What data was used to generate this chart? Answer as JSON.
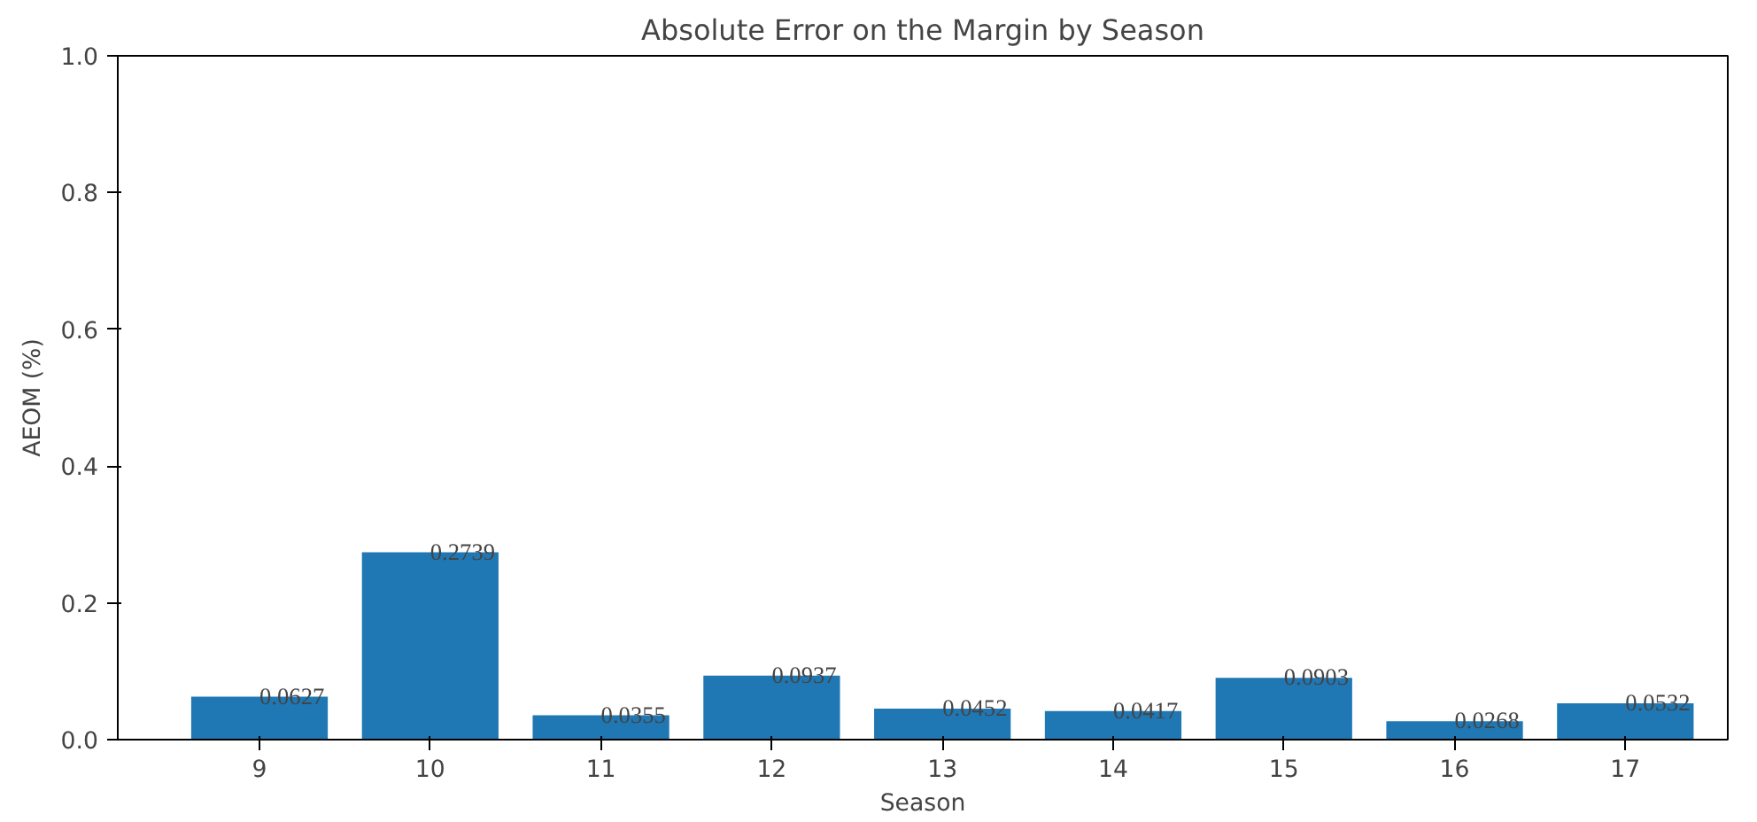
{
  "chart_data": {
    "type": "bar",
    "title": "Absolute Error on the Margin by Season",
    "xlabel": "Season",
    "ylabel": "AEOM (%)",
    "categories": [
      "9",
      "10",
      "11",
      "12",
      "13",
      "14",
      "15",
      "16",
      "17"
    ],
    "values": [
      0.0627,
      0.2739,
      0.0355,
      0.0937,
      0.0452,
      0.0417,
      0.0903,
      0.0268,
      0.0532
    ],
    "color": "#1f77b4",
    "ylim": [
      0,
      1
    ],
    "yticks": [
      {
        "value": 0,
        "label": "0.0"
      },
      {
        "value": 0.2,
        "label": "0.2"
      },
      {
        "value": 0.4,
        "label": "0.4"
      },
      {
        "value": 0.6,
        "label": "0.6"
      },
      {
        "value": 0.8,
        "label": "0.8"
      },
      {
        "value": 1,
        "label": "1.0"
      }
    ],
    "data_labels": true,
    "grid": false
  }
}
